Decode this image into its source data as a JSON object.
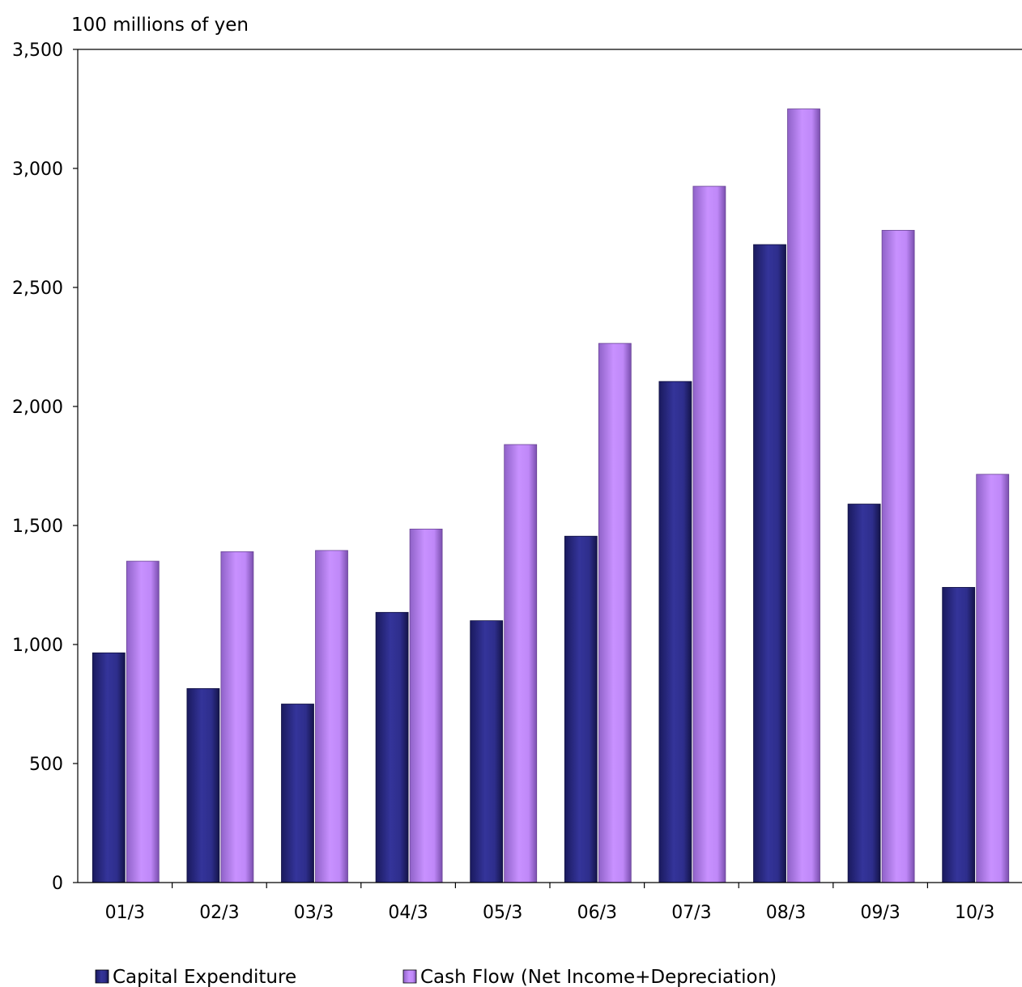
{
  "chart_data": {
    "type": "bar",
    "title": "",
    "xlabel": "",
    "ylabel": "100 millions of yen",
    "ylim": [
      0,
      3500
    ],
    "yticks": [
      0,
      500,
      1000,
      1500,
      2000,
      2500,
      3000,
      3500
    ],
    "ytick_labels": [
      "0",
      "500",
      "1,000",
      "1,500",
      "2,000",
      "2,500",
      "3,000",
      "3,500"
    ],
    "grid": false,
    "legend_position": "bottom",
    "categories": [
      "01/3",
      "02/3",
      "03/3",
      "04/3",
      "05/3",
      "06/3",
      "07/3",
      "08/3",
      "09/3",
      "10/3"
    ],
    "series": [
      {
        "name": "Capital Expenditure",
        "color": "#2e2e8c",
        "values": [
          965,
          815,
          750,
          1135,
          1100,
          1455,
          2105,
          2680,
          1590,
          1240
        ]
      },
      {
        "name": "Cash Flow (Net Income+Depreciation)",
        "color": "#c08cff",
        "values": [
          1350,
          1390,
          1395,
          1485,
          1840,
          2265,
          2925,
          3250,
          2740,
          1715
        ]
      }
    ]
  }
}
